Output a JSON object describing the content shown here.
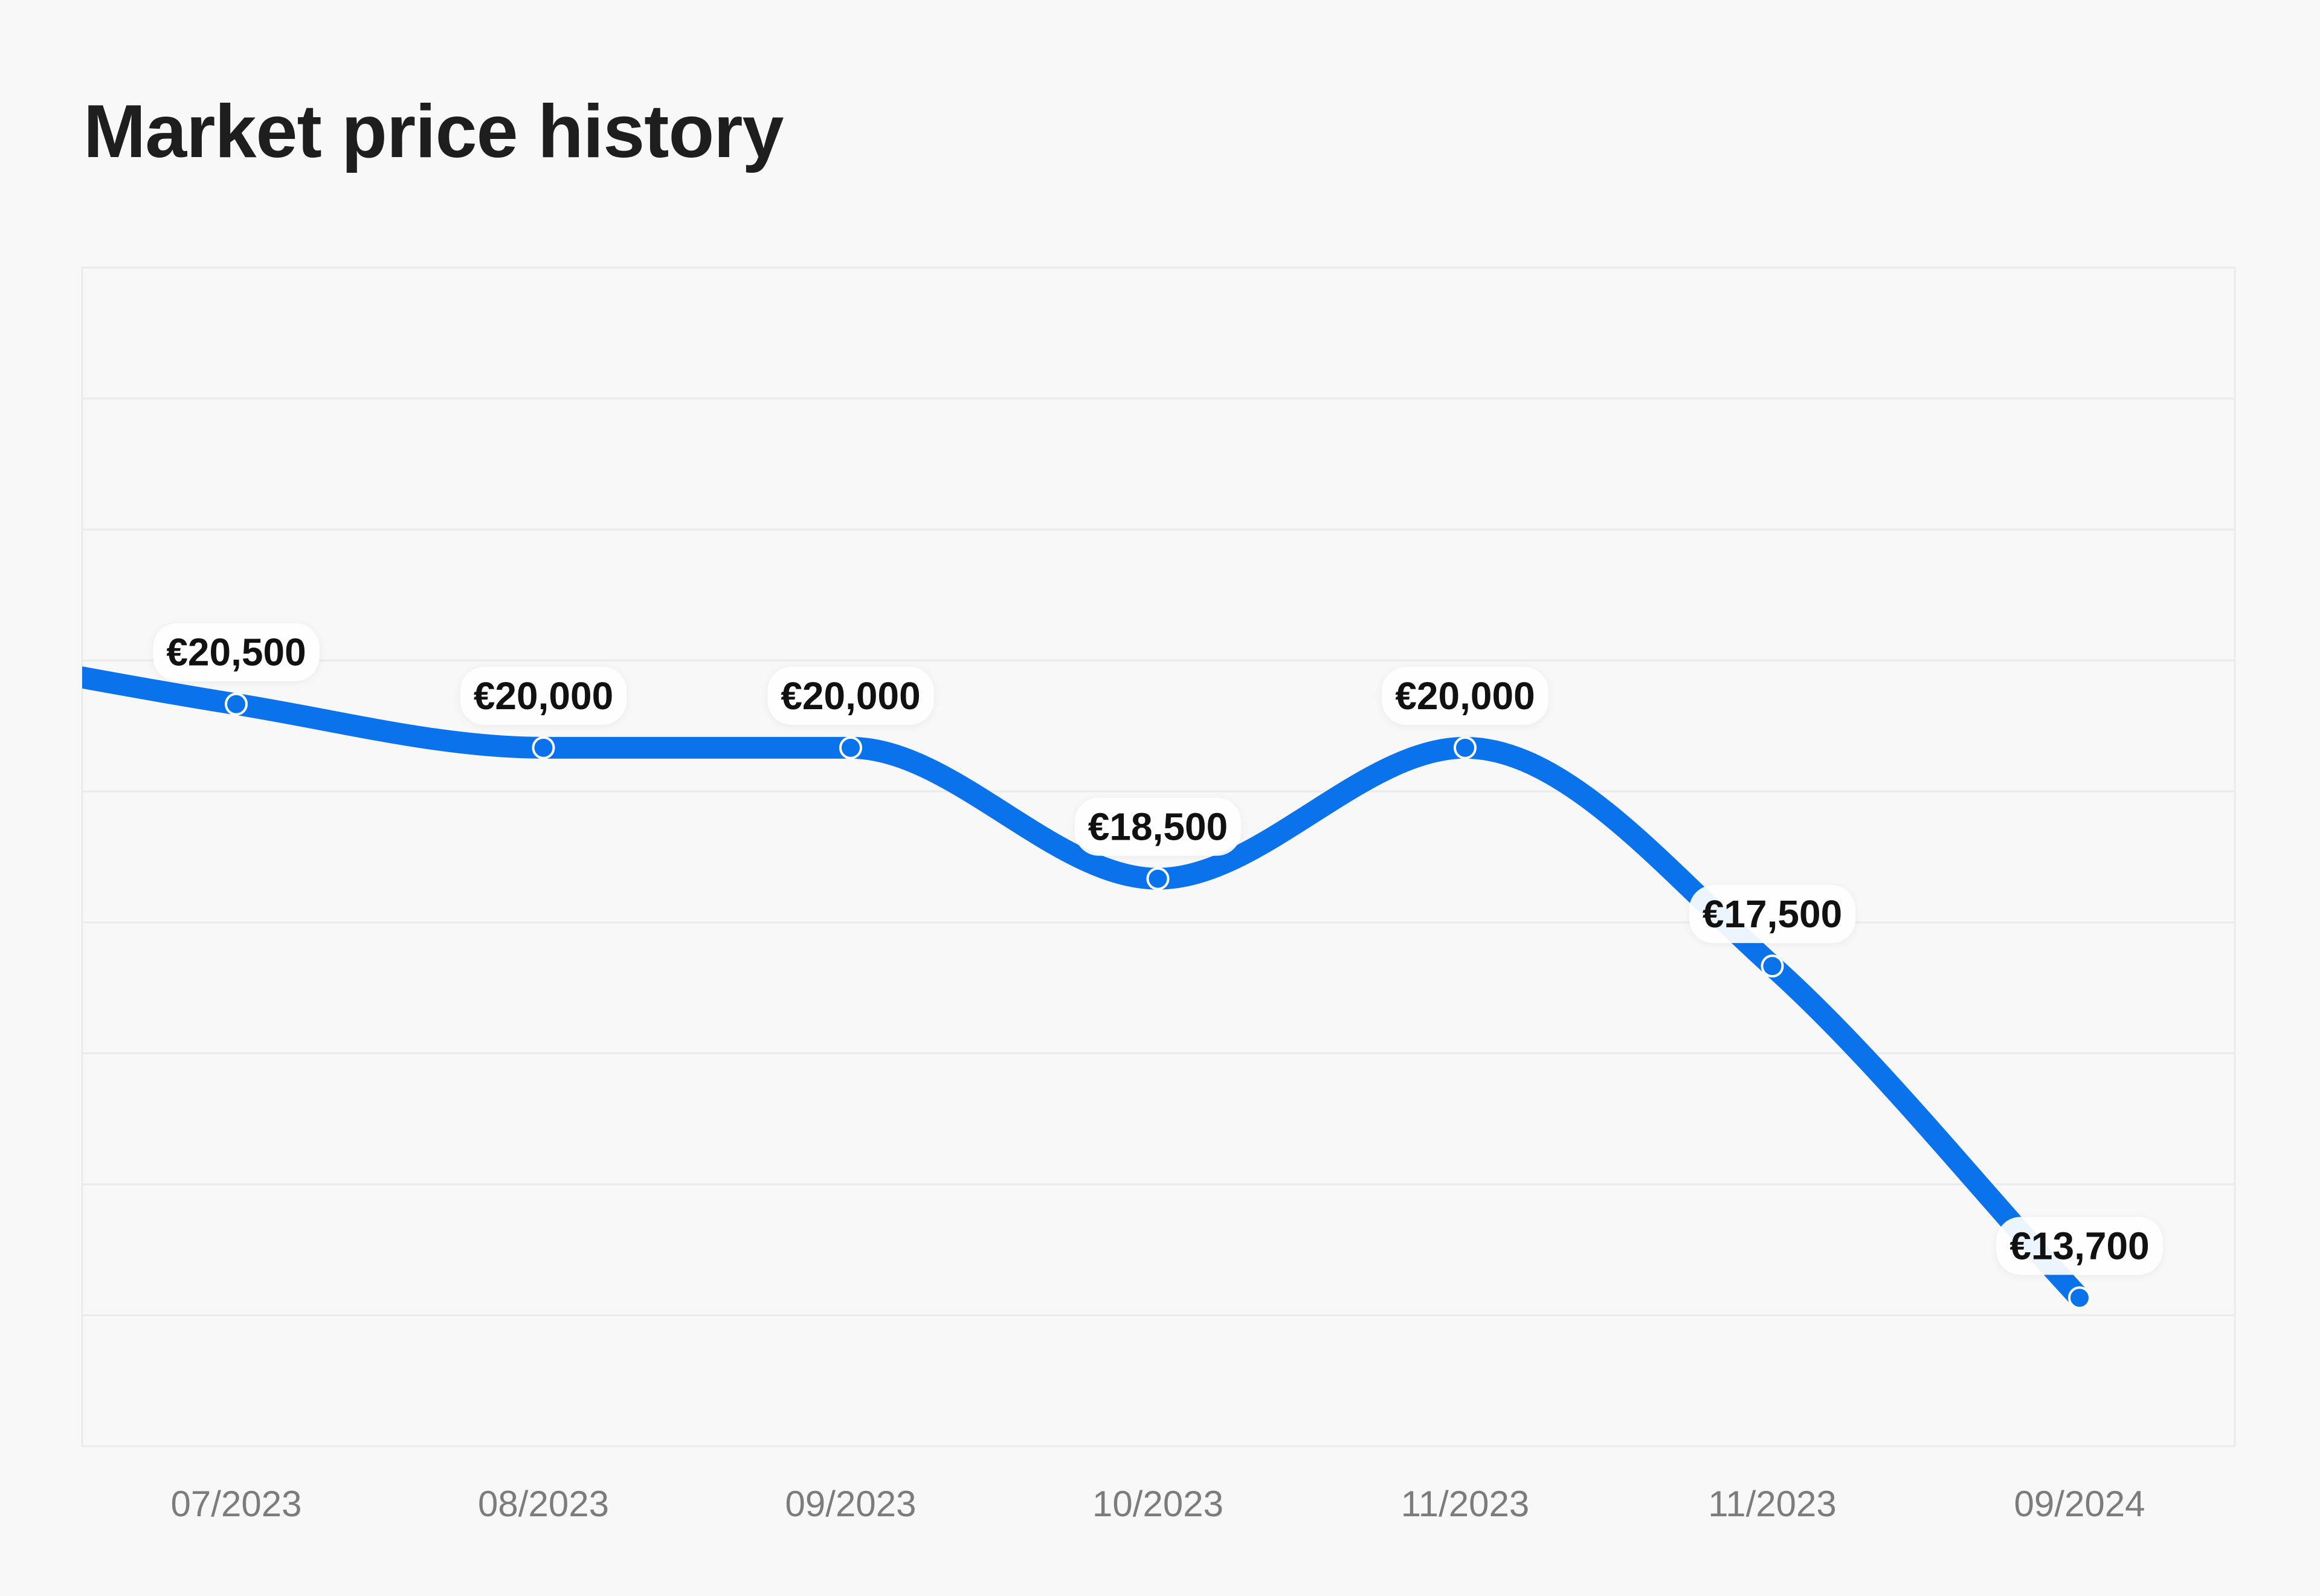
{
  "page": {
    "title": "Market price history"
  },
  "chart_data": {
    "type": "line",
    "title": "Market price history",
    "xlabel": "",
    "ylabel": "",
    "categories": [
      "07/2023",
      "08/2023",
      "09/2023",
      "10/2023",
      "11/2023",
      "11/2023",
      "09/2024"
    ],
    "series": [
      {
        "values": [
          20500,
          20000,
          20000,
          18500,
          20000,
          17500,
          13700
        ],
        "labels": [
          "€20,500",
          "€20,000",
          "€20,000",
          "€18,500",
          "€20,000",
          "€17,500",
          "€13,700"
        ]
      }
    ],
    "ylim": [
      12000,
      25500
    ],
    "grid": true,
    "y_tick_labels_shown": false,
    "line_color": "#0a73eb",
    "line_style": "smooth"
  }
}
